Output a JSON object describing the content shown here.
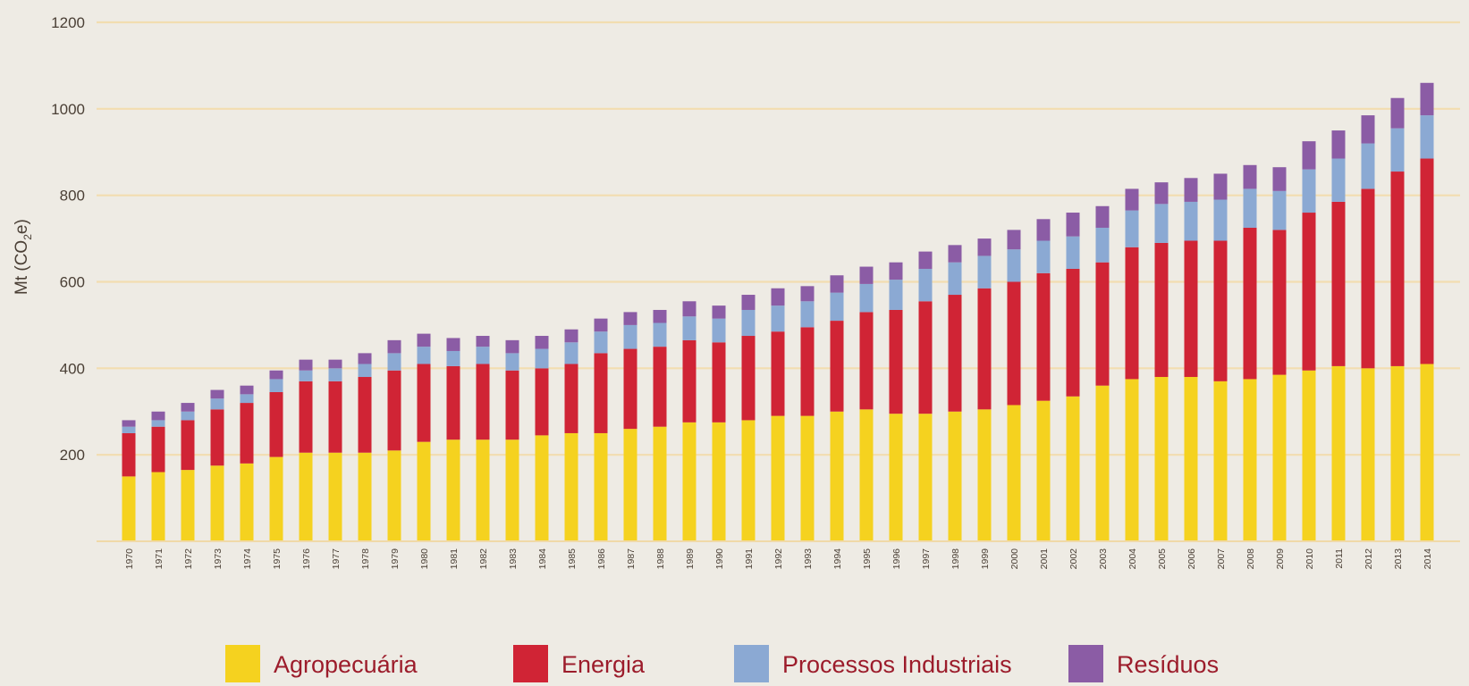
{
  "chart_data": {
    "type": "bar",
    "stacked": true,
    "ylabel_main": "Mt (CO",
    "ylabel_sub": "2",
    "ylabel_tail": "e)",
    "ylim": [
      0,
      1200
    ],
    "yticks": [
      200,
      400,
      600,
      800,
      1000,
      1200
    ],
    "grid": true,
    "legend_position": "bottom",
    "colors": {
      "background": "#eeebe4",
      "grid": "#f2ddb0",
      "axis": "#f0d9a8",
      "text": "#4a3f35",
      "legend_text": "#9c1c2b"
    },
    "categories": [
      "1970",
      "1971",
      "1972",
      "1973",
      "1974",
      "1975",
      "1976",
      "1977",
      "1978",
      "1979",
      "1980",
      "1981",
      "1982",
      "1983",
      "1984",
      "1985",
      "1986",
      "1987",
      "1988",
      "1989",
      "1990",
      "1991",
      "1992",
      "1993",
      "1994",
      "1995",
      "1996",
      "1997",
      "1998",
      "1999",
      "2000",
      "2001",
      "2002",
      "2003",
      "2004",
      "2005",
      "2006",
      "2007",
      "2008",
      "2009",
      "2010",
      "2011",
      "2012",
      "2013",
      "2014"
    ],
    "series": [
      {
        "name": "Agropecuária",
        "color": "#f5d21f",
        "values": [
          150,
          160,
          165,
          175,
          180,
          195,
          205,
          205,
          205,
          210,
          230,
          235,
          235,
          235,
          245,
          250,
          250,
          260,
          265,
          275,
          275,
          280,
          290,
          290,
          300,
          305,
          295,
          295,
          300,
          305,
          315,
          325,
          335,
          360,
          375,
          380,
          380,
          370,
          375,
          385,
          395,
          405,
          400,
          405,
          410
        ]
      },
      {
        "name": "Energia",
        "color": "#d02435",
        "values": [
          100,
          105,
          115,
          130,
          140,
          150,
          165,
          165,
          175,
          185,
          180,
          170,
          175,
          160,
          155,
          160,
          185,
          185,
          185,
          190,
          185,
          195,
          195,
          205,
          210,
          225,
          240,
          260,
          270,
          280,
          285,
          295,
          295,
          285,
          305,
          310,
          315,
          325,
          350,
          335,
          365,
          380,
          415,
          450,
          475
        ]
      },
      {
        "name": "Processos Industriais",
        "color": "#8ba9d3",
        "values": [
          15,
          15,
          20,
          25,
          20,
          30,
          25,
          30,
          30,
          40,
          40,
          35,
          40,
          40,
          45,
          50,
          50,
          55,
          55,
          55,
          55,
          60,
          60,
          60,
          65,
          65,
          70,
          75,
          75,
          75,
          75,
          75,
          75,
          80,
          85,
          90,
          90,
          95,
          90,
          90,
          100,
          100,
          105,
          100,
          100
        ]
      },
      {
        "name": "Resíduos",
        "color": "#8b5ca5",
        "values": [
          15,
          20,
          20,
          20,
          20,
          20,
          25,
          20,
          25,
          30,
          30,
          30,
          25,
          30,
          30,
          30,
          30,
          30,
          30,
          35,
          30,
          35,
          40,
          35,
          40,
          40,
          40,
          40,
          40,
          40,
          45,
          50,
          55,
          50,
          50,
          50,
          55,
          60,
          55,
          55,
          65,
          65,
          65,
          70,
          75
        ]
      }
    ]
  }
}
